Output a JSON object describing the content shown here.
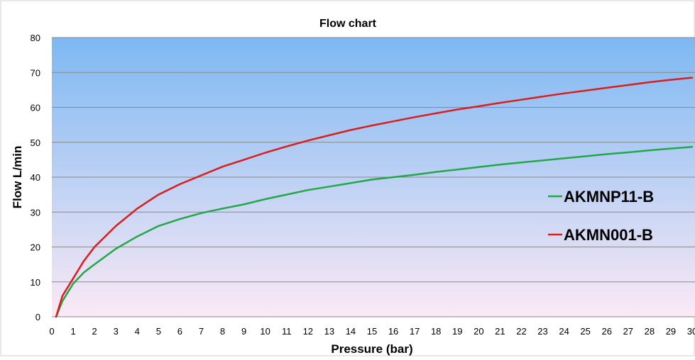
{
  "chart_data": {
    "type": "line",
    "title": "Flow chart",
    "xlabel": "Pressure (bar)",
    "ylabel": "Flow L/min",
    "xlim": [
      0,
      30
    ],
    "ylim": [
      0,
      80
    ],
    "x_ticks": [
      "0",
      "1",
      "2",
      "3",
      "4",
      "5",
      "6",
      "7",
      "8",
      "9",
      "10",
      "11",
      "12",
      "13",
      "14",
      "15",
      "16",
      "17",
      "18",
      "19",
      "20",
      "21",
      "22",
      "23",
      "24",
      "25",
      "26",
      "27",
      "28",
      "29",
      "30"
    ],
    "y_ticks": [
      "0",
      "10",
      "20",
      "30",
      "40",
      "50",
      "60",
      "70",
      "80"
    ],
    "grid": true,
    "legend_placement": "right",
    "x": [
      0.2,
      0.5,
      1,
      1.5,
      2,
      3,
      4,
      5,
      6,
      7,
      8,
      9,
      10,
      11,
      12,
      13,
      14,
      15,
      16,
      17,
      18,
      19,
      20,
      21,
      22,
      23,
      24,
      25,
      26,
      27,
      28,
      29,
      30
    ],
    "series": [
      {
        "name": "AKMNP11-B",
        "color": "#22a846",
        "values": [
          0.0,
          4.5,
          9.5,
          12.7,
          15.0,
          19.5,
          23.0,
          26.0,
          28.0,
          29.7,
          31.0,
          32.2,
          33.7,
          35.0,
          36.3,
          37.3,
          38.3,
          39.3,
          40.0,
          40.7,
          41.5,
          42.2,
          42.9,
          43.6,
          44.2,
          44.8,
          45.4,
          46.0,
          46.6,
          47.1,
          47.7,
          48.2,
          48.7
        ]
      },
      {
        "name": "AKMN001-B",
        "color": "#dd1c1c",
        "values": [
          0.0,
          6.0,
          11.0,
          16.0,
          20.0,
          26.0,
          31.0,
          35.0,
          38.0,
          40.5,
          43.0,
          45.0,
          47.0,
          48.8,
          50.5,
          52.0,
          53.5,
          54.8,
          56.0,
          57.2,
          58.3,
          59.4,
          60.3,
          61.3,
          62.2,
          63.1,
          64.0,
          64.8,
          65.6,
          66.4,
          67.2,
          67.9,
          68.5
        ]
      }
    ]
  },
  "colors": {
    "plot_top": "#7db8f2",
    "plot_bottom": "#fbe9f5",
    "gridline": "#8a8a8a",
    "frame": "#d0d0d0"
  }
}
